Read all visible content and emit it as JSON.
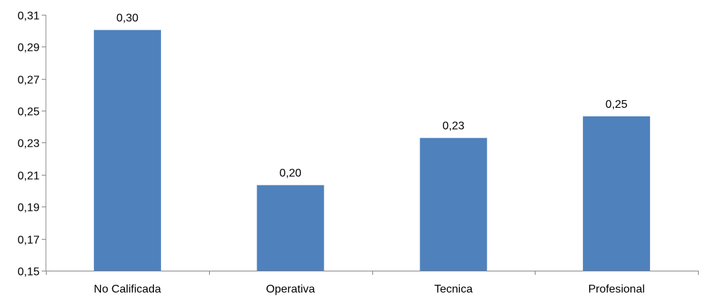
{
  "chart_data": {
    "type": "bar",
    "categories": [
      "No Calificada",
      "Operativa",
      "Tecnica",
      "Profesional"
    ],
    "values": [
      0.3005,
      0.2035,
      0.233,
      0.2465
    ],
    "data_labels": [
      "0,30",
      "0,20",
      "0,23",
      "0,25"
    ],
    "ylim": [
      0.15,
      0.31
    ],
    "yticks": [
      0.15,
      0.17,
      0.19,
      0.21,
      0.23,
      0.25,
      0.27,
      0.29,
      0.31
    ],
    "ytick_labels": [
      "0,15",
      "0,17",
      "0,19",
      "0,21",
      "0,23",
      "0,25",
      "0,27",
      "0,29",
      "0,31"
    ],
    "grid": false,
    "legend": "none",
    "bar_color": "#4F81BD",
    "axis_color": "#868686"
  }
}
